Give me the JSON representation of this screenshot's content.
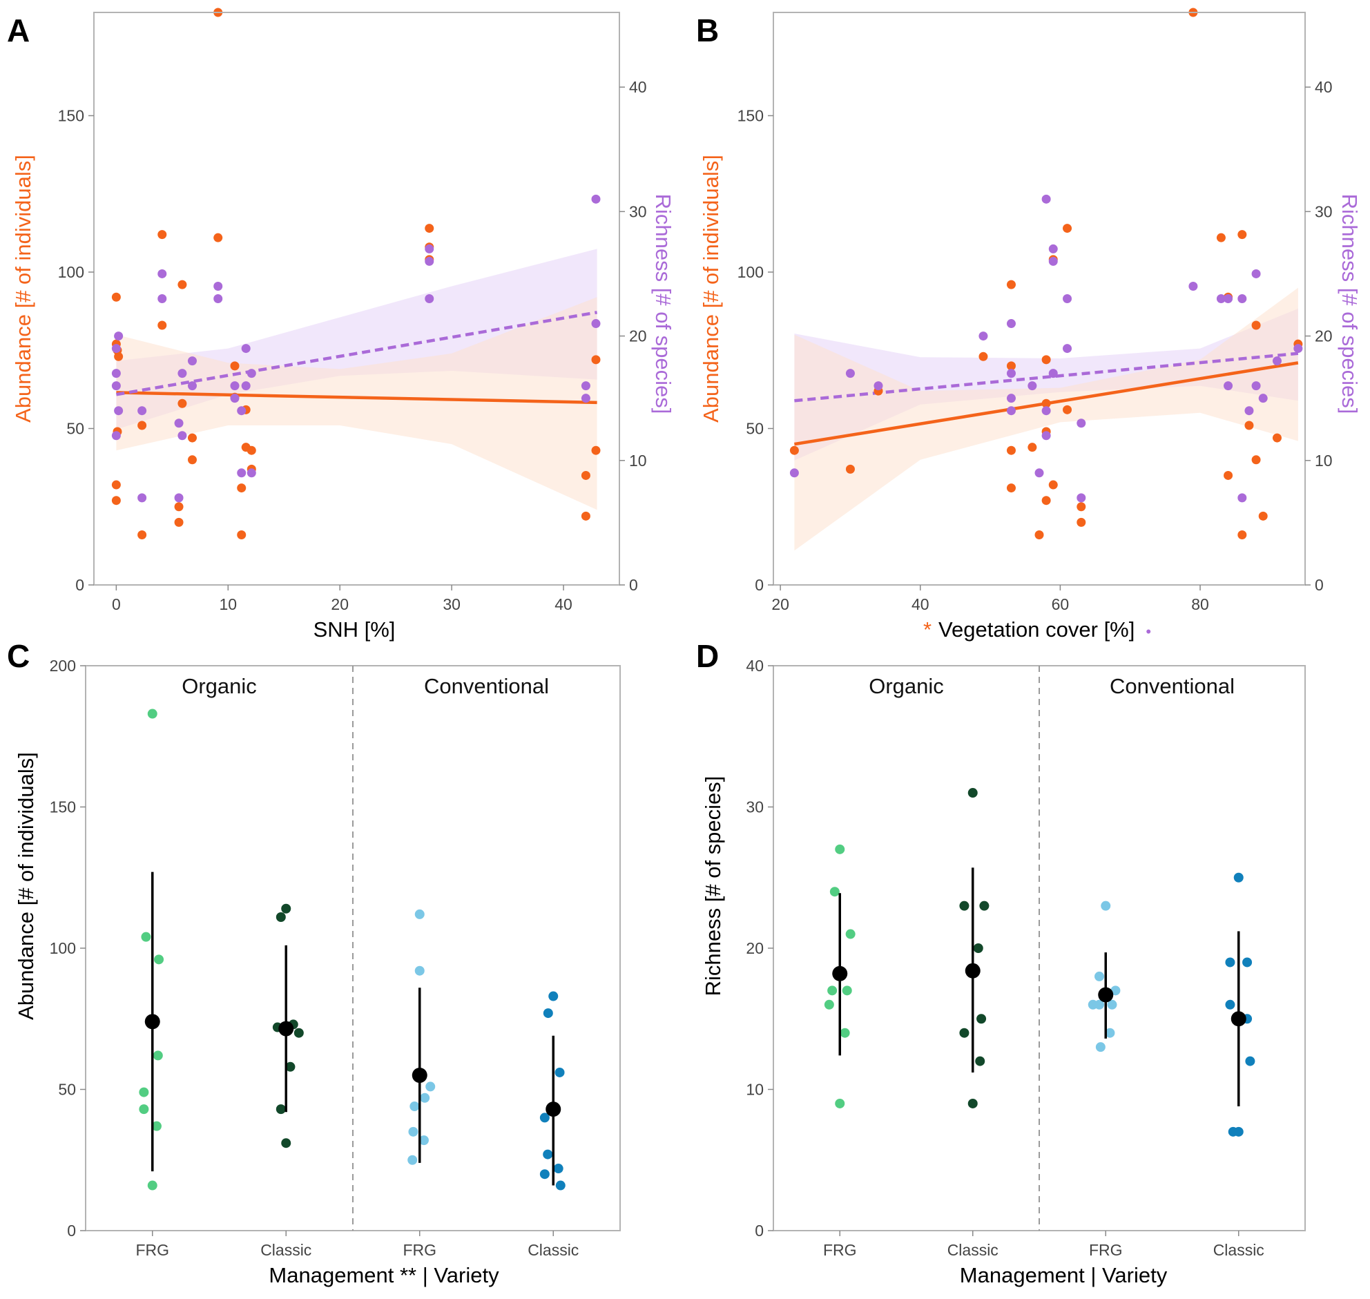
{
  "colors": {
    "abundance": "#f4631a",
    "richness": "#aa6ad8",
    "abundance_band": "#fde2cf",
    "richness_band": "#e6d4f7",
    "organic_frg": "#52cd82",
    "organic_classic": "#12482a",
    "conventional_frg": "#7bc7e6",
    "conventional_classic": "#1080bb",
    "mean": "#000000"
  },
  "chart_data": [
    {
      "panel": "A",
      "type": "scatter",
      "xlabel": "SNH [%]",
      "ylabel_left": "Abundance [# of individuals]",
      "ylabel_right": "Richness [# of species]",
      "xlim": [
        -2,
        45
      ],
      "ylim_left": [
        0,
        183
      ],
      "ylim_right": [
        0,
        46
      ],
      "xticks": [
        0,
        10,
        20,
        30,
        40
      ],
      "yticks_left": [
        0,
        50,
        100,
        150
      ],
      "yticks_right": [
        0,
        10,
        20,
        30,
        40
      ],
      "abundance_points": [
        [
          0,
          92
        ],
        [
          0,
          77
        ],
        [
          0.1,
          75
        ],
        [
          0.2,
          73
        ],
        [
          0.1,
          49
        ],
        [
          0,
          32
        ],
        [
          0,
          27
        ],
        [
          2.3,
          16
        ],
        [
          2.3,
          51
        ],
        [
          4.1,
          112
        ],
        [
          4.1,
          83
        ],
        [
          5.9,
          96
        ],
        [
          5.9,
          58
        ],
        [
          5.6,
          25
        ],
        [
          5.6,
          20
        ],
        [
          6.8,
          47
        ],
        [
          6.8,
          40
        ],
        [
          9.1,
          183
        ],
        [
          9.1,
          111
        ],
        [
          10.6,
          70
        ],
        [
          10.6,
          60
        ],
        [
          11.2,
          31
        ],
        [
          11.2,
          16
        ],
        [
          11.6,
          56
        ],
        [
          11.6,
          44
        ],
        [
          12.1,
          43
        ],
        [
          12.1,
          37
        ],
        [
          28.0,
          114
        ],
        [
          28.0,
          104
        ],
        [
          28.0,
          108
        ],
        [
          42.0,
          35
        ],
        [
          42.0,
          22
        ],
        [
          42.9,
          72
        ],
        [
          42.9,
          43
        ]
      ],
      "richness_points": [
        [
          0,
          19
        ],
        [
          0,
          17
        ],
        [
          0,
          16
        ],
        [
          0.2,
          20
        ],
        [
          0.2,
          14
        ],
        [
          0,
          12
        ],
        [
          2.3,
          14
        ],
        [
          2.3,
          7
        ],
        [
          4.1,
          25
        ],
        [
          4.1,
          23
        ],
        [
          5.6,
          13
        ],
        [
          5.6,
          7
        ],
        [
          5.9,
          17
        ],
        [
          5.9,
          12
        ],
        [
          6.8,
          18
        ],
        [
          6.8,
          16
        ],
        [
          9.1,
          24
        ],
        [
          9.1,
          23
        ],
        [
          10.6,
          16
        ],
        [
          10.6,
          15
        ],
        [
          11.2,
          14
        ],
        [
          11.2,
          9
        ],
        [
          11.6,
          19
        ],
        [
          11.6,
          16
        ],
        [
          12.1,
          17
        ],
        [
          12.1,
          9
        ],
        [
          28.0,
          27
        ],
        [
          28.0,
          26
        ],
        [
          28.0,
          23
        ],
        [
          42.0,
          16
        ],
        [
          42.0,
          15
        ],
        [
          42.9,
          31
        ],
        [
          42.9,
          21
        ]
      ],
      "abundance_fit": {
        "x": [
          0,
          43
        ],
        "y": [
          61.5,
          58.3
        ],
        "style": "solid"
      },
      "abundance_ci": {
        "x": [
          0,
          10,
          20,
          30,
          43
        ],
        "lower": [
          43,
          51,
          51,
          45,
          24
        ],
        "upper": [
          80,
          71,
          69,
          74,
          92
        ]
      },
      "richness_fit": {
        "x": [
          0,
          43
        ],
        "y": [
          15.3,
          21.9
        ],
        "style": "dashed"
      },
      "richness_ci": {
        "x": [
          0,
          10,
          20,
          30,
          43
        ],
        "lower": [
          12.5,
          15.3,
          16.8,
          17.2,
          16.5
        ],
        "upper": [
          18.0,
          19.0,
          21.5,
          24.0,
          27.0
        ]
      }
    },
    {
      "panel": "B",
      "type": "scatter",
      "xlabel_star": "*",
      "xlabel": "Vegetation cover [%]",
      "xlabel_dot": "•",
      "ylabel_left": "Abundance [# of individuals]",
      "ylabel_right": "Richness [# of species]",
      "xlim": [
        19,
        95
      ],
      "ylim_left": [
        0,
        183
      ],
      "ylim_right": [
        0,
        46
      ],
      "xticks": [
        20,
        40,
        60,
        80
      ],
      "yticks_left": [
        0,
        50,
        100,
        150
      ],
      "yticks_right": [
        0,
        10,
        20,
        30,
        40
      ],
      "abundance_points": [
        [
          22,
          43
        ],
        [
          30,
          37
        ],
        [
          34,
          62
        ],
        [
          49,
          73
        ],
        [
          53,
          96
        ],
        [
          53,
          70
        ],
        [
          53,
          43
        ],
        [
          53,
          31
        ],
        [
          56,
          44
        ],
        [
          57,
          16
        ],
        [
          58,
          72
        ],
        [
          58,
          58
        ],
        [
          58,
          49
        ],
        [
          58,
          27
        ],
        [
          59,
          104
        ],
        [
          59,
          32
        ],
        [
          61,
          114
        ],
        [
          61,
          56
        ],
        [
          63,
          25
        ],
        [
          63,
          20
        ],
        [
          79,
          183
        ],
        [
          83,
          111
        ],
        [
          84,
          92
        ],
        [
          84,
          35
        ],
        [
          86,
          112
        ],
        [
          86,
          16
        ],
        [
          87,
          51
        ],
        [
          88,
          83
        ],
        [
          88,
          40
        ],
        [
          89,
          22
        ],
        [
          91,
          47
        ],
        [
          94,
          77
        ]
      ],
      "richness_points": [
        [
          22,
          9
        ],
        [
          30,
          17
        ],
        [
          34,
          16
        ],
        [
          49,
          20
        ],
        [
          53,
          21
        ],
        [
          53,
          17
        ],
        [
          53,
          15
        ],
        [
          53,
          14
        ],
        [
          56,
          16
        ],
        [
          57,
          9
        ],
        [
          58,
          31
        ],
        [
          58,
          14
        ],
        [
          58,
          12
        ],
        [
          59,
          27
        ],
        [
          59,
          26
        ],
        [
          59,
          17
        ],
        [
          61,
          23
        ],
        [
          61,
          19
        ],
        [
          63,
          13
        ],
        [
          63,
          7
        ],
        [
          79,
          24
        ],
        [
          83,
          23
        ],
        [
          84,
          23
        ],
        [
          84,
          16
        ],
        [
          86,
          23
        ],
        [
          86,
          7
        ],
        [
          87,
          14
        ],
        [
          88,
          25
        ],
        [
          88,
          16
        ],
        [
          89,
          15
        ],
        [
          91,
          18
        ],
        [
          94,
          19
        ]
      ],
      "abundance_fit": {
        "x": [
          22,
          94
        ],
        "y": [
          45,
          71
        ],
        "style": "solid"
      },
      "abundance_ci": {
        "x": [
          22,
          40,
          60,
          80,
          94
        ],
        "lower": [
          11,
          40,
          52,
          55,
          46
        ],
        "upper": [
          80,
          62,
          63,
          72,
          95
        ]
      },
      "richness_fit": {
        "x": [
          22,
          94
        ],
        "y": [
          14.8,
          18.6
        ],
        "style": "dashed"
      },
      "richness_ci": {
        "x": [
          22,
          40,
          60,
          80,
          94
        ],
        "lower": [
          10,
          14.5,
          15.5,
          16.0,
          14.8
        ],
        "upper": [
          20.2,
          18.3,
          18.2,
          19.0,
          22.2
        ]
      }
    },
    {
      "panel": "C",
      "type": "scatter",
      "ylabel": "Abundance [# of individuals]",
      "xlabel": "Management ** | Variety",
      "ylim": [
        0,
        200
      ],
      "yticks": [
        0,
        50,
        100,
        150,
        200
      ],
      "facets": [
        "Organic",
        "Conventional"
      ],
      "groups": [
        {
          "facet": "Organic",
          "label": "FRG",
          "color_key": "organic_frg",
          "points": [
            [
              0,
              183
            ],
            [
              -0.15,
              104
            ],
            [
              0.15,
              96
            ],
            [
              0.13,
              62
            ],
            [
              -0.2,
              49
            ],
            [
              -0.2,
              43
            ],
            [
              0.1,
              37
            ],
            [
              0,
              16
            ]
          ],
          "mean": 74,
          "lower": 21,
          "upper": 127
        },
        {
          "facet": "Organic",
          "label": "Classic",
          "color_key": "organic_classic",
          "points": [
            [
              -0.12,
              111
            ],
            [
              0,
              114
            ],
            [
              -0.2,
              72
            ],
            [
              0.17,
              73
            ],
            [
              0.3,
              70
            ],
            [
              0.1,
              58
            ],
            [
              -0.12,
              43
            ],
            [
              0,
              31
            ]
          ],
          "mean": 71.5,
          "lower": 42,
          "upper": 101
        },
        {
          "facet": "Conventional",
          "label": "FRG",
          "color_key": "conventional_frg",
          "points": [
            [
              0,
              112
            ],
            [
              0,
              92
            ],
            [
              0.25,
              51
            ],
            [
              0.12,
              47
            ],
            [
              -0.12,
              44
            ],
            [
              -0.15,
              35
            ],
            [
              0.1,
              32
            ],
            [
              -0.17,
              25
            ]
          ],
          "mean": 55,
          "lower": 24,
          "upper": 86
        },
        {
          "facet": "Conventional",
          "label": "Classic",
          "color_key": "conventional_classic",
          "points": [
            [
              0,
              83
            ],
            [
              -0.12,
              77
            ],
            [
              0.15,
              56
            ],
            [
              -0.2,
              40
            ],
            [
              -0.13,
              27
            ],
            [
              0.12,
              22
            ],
            [
              -0.2,
              20
            ],
            [
              0.17,
              16
            ]
          ],
          "mean": 43,
          "lower": 16,
          "upper": 69
        }
      ]
    },
    {
      "panel": "D",
      "type": "scatter",
      "ylabel": "Richness [# of species]",
      "xlabel": "Management | Variety",
      "ylim": [
        0,
        40
      ],
      "yticks": [
        0,
        10,
        20,
        30,
        40
      ],
      "facets": [
        "Organic",
        "Conventional"
      ],
      "groups": [
        {
          "facet": "Organic",
          "label": "FRG",
          "color_key": "organic_frg",
          "points": [
            [
              0,
              27
            ],
            [
              -0.12,
              24
            ],
            [
              0.25,
              21
            ],
            [
              -0.25,
              16
            ],
            [
              -0.18,
              17
            ],
            [
              0.17,
              17
            ],
            [
              0.12,
              14
            ],
            [
              0,
              9
            ]
          ],
          "mean": 18.2,
          "lower": 12.4,
          "upper": 23.9
        },
        {
          "facet": "Organic",
          "label": "Classic",
          "color_key": "organic_classic",
          "points": [
            [
              0,
              31
            ],
            [
              -0.2,
              23
            ],
            [
              0.27,
              23
            ],
            [
              0.13,
              20
            ],
            [
              0.2,
              15
            ],
            [
              -0.2,
              14
            ],
            [
              0.17,
              12
            ],
            [
              0,
              9
            ]
          ],
          "mean": 18.4,
          "lower": 11.2,
          "upper": 25.7
        },
        {
          "facet": "Conventional",
          "label": "FRG",
          "color_key": "conventional_frg",
          "points": [
            [
              0,
              23
            ],
            [
              -0.15,
              18
            ],
            [
              0.23,
              17
            ],
            [
              -0.3,
              16
            ],
            [
              -0.15,
              16
            ],
            [
              0.15,
              16
            ],
            [
              0.1,
              14
            ],
            [
              -0.12,
              13
            ]
          ],
          "mean": 16.7,
          "lower": 13.6,
          "upper": 19.7
        },
        {
          "facet": "Conventional",
          "label": "Classic",
          "color_key": "conventional_classic",
          "points": [
            [
              0,
              25
            ],
            [
              -0.2,
              19
            ],
            [
              0.2,
              19
            ],
            [
              -0.2,
              16
            ],
            [
              0.2,
              15
            ],
            [
              0.27,
              12
            ],
            [
              -0.13,
              7
            ],
            [
              0,
              7
            ]
          ],
          "mean": 15,
          "lower": 8.8,
          "upper": 21.2
        }
      ]
    }
  ]
}
